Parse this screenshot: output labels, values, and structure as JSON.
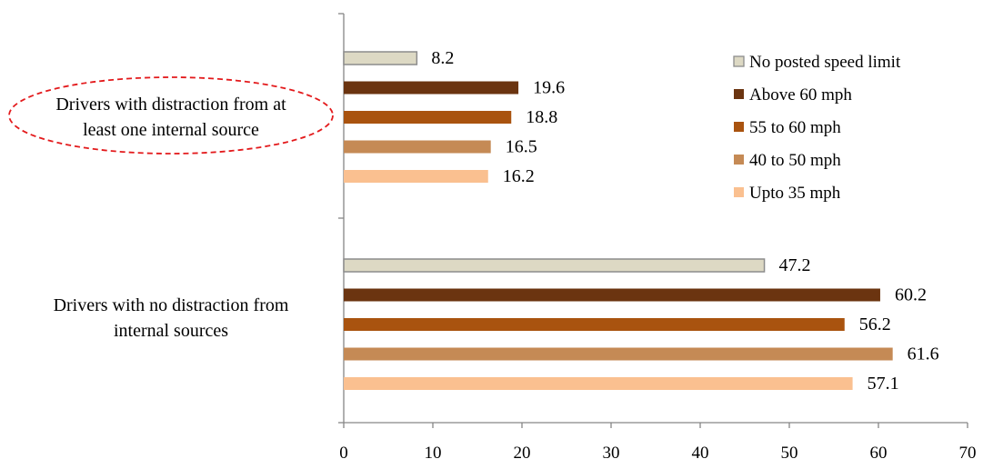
{
  "chart_data": {
    "type": "bar",
    "orientation": "horizontal",
    "categories": [
      {
        "lines": [
          "Drivers with distraction from at",
          "least one internal source"
        ],
        "highlighted": true
      },
      {
        "lines": [
          "Drivers with no distraction from",
          "internal sources"
        ],
        "highlighted": false
      }
    ],
    "series": [
      {
        "name": "No posted speed limit",
        "color": "#ddd9c4",
        "values": [
          8.2,
          47.2
        ]
      },
      {
        "name": "Above 60 mph",
        "color": "#6b3410",
        "values": [
          19.6,
          60.2
        ]
      },
      {
        "name": "55 to 60 mph",
        "color": "#a9530f",
        "values": [
          18.8,
          56.2
        ]
      },
      {
        "name": "40 to 50 mph",
        "color": "#c58a55",
        "values": [
          16.5,
          61.6
        ]
      },
      {
        "name": "Upto 35 mph",
        "color": "#fac090",
        "values": [
          16.2,
          57.1
        ]
      }
    ],
    "xlim": [
      0,
      70
    ],
    "xticks": [
      "0",
      "10",
      "20",
      "30",
      "40",
      "50",
      "60",
      "70"
    ],
    "grid": false,
    "legend_position": "right",
    "highlight_color": "#e31a1c"
  }
}
